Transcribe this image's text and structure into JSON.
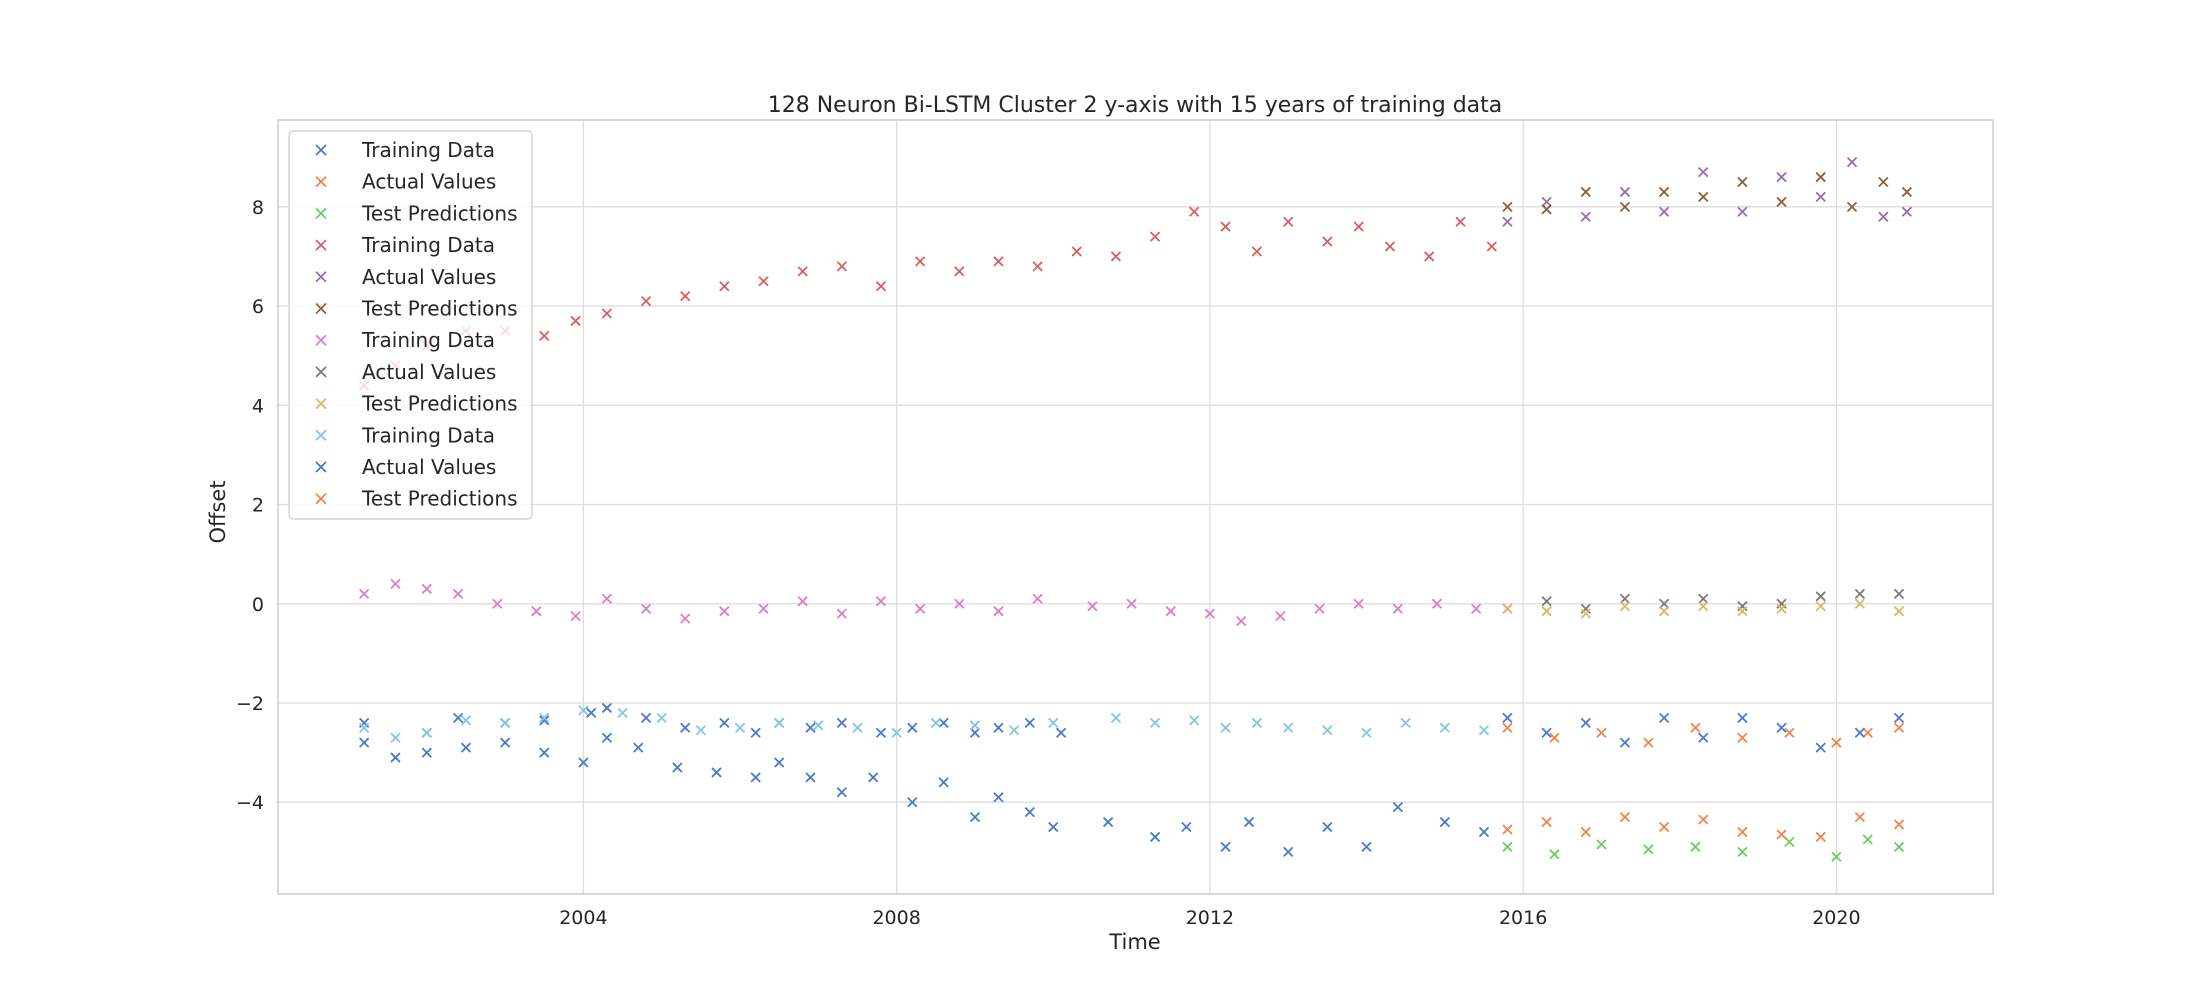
{
  "chart_data": {
    "type": "scatter",
    "title": "128 Neuron Bi-LSTM Cluster 2 y-axis with 15 years of training data",
    "xlabel": "Time",
    "ylabel": "Offset",
    "xlim": [
      2000.1,
      2022.0
    ],
    "ylim": [
      -5.85,
      9.75
    ],
    "x_ticks": [
      2004,
      2008,
      2012,
      2016,
      2020
    ],
    "x_tick_labels": [
      "2004",
      "2008",
      "2012",
      "2016",
      "2020"
    ],
    "y_ticks": [
      -4,
      -2,
      0,
      2,
      4,
      6,
      8
    ],
    "y_tick_labels": [
      "−4",
      "−2",
      "0",
      "2",
      "4",
      "6",
      "8"
    ],
    "grid": true,
    "legend_placement": "top-left",
    "marker": "x",
    "series": [
      {
        "name": "Training Data",
        "color": "#4878d0",
        "x": [
          2001.2,
          2002.0,
          2002.4,
          2003.0,
          2003.5,
          2004.1,
          2004.3,
          2004.8,
          2005.3,
          2005.8,
          2006.2,
          2006.5,
          2006.9,
          2007.3,
          2007.8,
          2008.2,
          2008.6,
          2009.0,
          2009.3,
          2009.7,
          2010.1
        ],
        "y": [
          -2.4,
          -2.6,
          -2.3,
          -2.4,
          -2.35,
          -2.2,
          -2.1,
          -2.3,
          -2.5,
          -2.4,
          -2.6,
          -2.4,
          -2.5,
          -2.4,
          -2.6,
          -2.5,
          -2.4,
          -2.6,
          -2.5,
          -2.4,
          -2.6
        ]
      },
      {
        "name": "Actual Values",
        "color": "#ee854a",
        "x": [
          2015.8,
          2016.4,
          2017.0,
          2017.6,
          2018.2,
          2018.8,
          2019.4,
          2020.0,
          2020.4,
          2020.8
        ],
        "y": [
          -2.5,
          -2.7,
          -2.6,
          -2.8,
          -2.5,
          -2.7,
          -2.6,
          -2.8,
          -2.6,
          -2.5
        ]
      },
      {
        "name": "Test Predictions",
        "color": "#6acc64",
        "x": [
          2015.8,
          2016.4,
          2017.0,
          2017.6,
          2018.2,
          2018.8,
          2019.4,
          2020.0,
          2020.4,
          2020.8
        ],
        "y": [
          -4.9,
          -5.05,
          -4.85,
          -4.95,
          -4.9,
          -5.0,
          -4.8,
          -5.1,
          -4.75,
          -4.9
        ]
      },
      {
        "name": "Training Data",
        "color": "#d65f5f",
        "x": [
          2001.2,
          2001.6,
          2002.0,
          2002.5,
          2003.0,
          2003.5,
          2003.9,
          2004.3,
          2004.8,
          2005.3,
          2005.8,
          2006.3,
          2006.8,
          2007.3,
          2007.8,
          2008.3,
          2008.8,
          2009.3,
          2009.8,
          2010.3,
          2010.8,
          2011.3,
          2011.8,
          2012.2,
          2012.6,
          2013.0,
          2013.5,
          2013.9,
          2014.3,
          2014.8,
          2015.2,
          2015.6
        ],
        "y": [
          4.4,
          4.8,
          5.2,
          5.5,
          5.5,
          5.4,
          5.7,
          5.85,
          6.1,
          6.2,
          6.4,
          6.5,
          6.7,
          6.8,
          6.4,
          6.9,
          6.7,
          6.9,
          6.8,
          7.1,
          7.0,
          7.4,
          7.9,
          7.6,
          7.1,
          7.7,
          7.3,
          7.6,
          7.2,
          7.0,
          7.7,
          7.2
        ]
      },
      {
        "name": "Actual Values",
        "color": "#956cb4",
        "x": [
          2015.8,
          2016.3,
          2016.8,
          2017.3,
          2017.8,
          2018.3,
          2018.8,
          2019.3,
          2019.8,
          2020.2,
          2020.6,
          2020.9
        ],
        "y": [
          7.7,
          8.1,
          7.8,
          8.3,
          7.9,
          8.7,
          7.9,
          8.6,
          8.2,
          8.9,
          7.8,
          7.9
        ]
      },
      {
        "name": "Test Predictions",
        "color": "#8c613c",
        "x": [
          2015.8,
          2016.3,
          2016.8,
          2017.3,
          2017.8,
          2018.3,
          2018.8,
          2019.3,
          2019.8,
          2020.2,
          2020.6,
          2020.9
        ],
        "y": [
          8.0,
          7.95,
          8.3,
          8.0,
          8.3,
          8.2,
          8.5,
          8.1,
          8.6,
          8.0,
          8.5,
          8.3
        ]
      },
      {
        "name": "Training Data",
        "color": "#dc7ec0",
        "x": [
          2001.2,
          2001.6,
          2002.0,
          2002.4,
          2002.9,
          2003.4,
          2003.9,
          2004.3,
          2004.8,
          2005.3,
          2005.8,
          2006.3,
          2006.8,
          2007.3,
          2007.8,
          2008.3,
          2008.8,
          2009.3,
          2009.8,
          2010.5,
          2011.0,
          2011.5,
          2012.0,
          2012.4,
          2012.9,
          2013.4,
          2013.9,
          2014.4,
          2014.9,
          2015.4
        ],
        "y": [
          0.2,
          0.4,
          0.3,
          0.2,
          0.0,
          -0.15,
          -0.25,
          0.1,
          -0.1,
          -0.3,
          -0.15,
          -0.1,
          0.05,
          -0.2,
          0.05,
          -0.1,
          0.0,
          -0.15,
          0.1,
          -0.05,
          0.0,
          -0.15,
          -0.2,
          -0.35,
          -0.25,
          -0.1,
          0.0,
          -0.1,
          0.0,
          -0.1
        ]
      },
      {
        "name": "Actual Values",
        "color": "#797979",
        "x": [
          2015.8,
          2016.3,
          2016.8,
          2017.3,
          2017.8,
          2018.3,
          2018.8,
          2019.3,
          2019.8,
          2020.3,
          2020.8
        ],
        "y": [
          -0.1,
          0.05,
          -0.1,
          0.1,
          0.0,
          0.1,
          -0.05,
          0.0,
          0.15,
          0.2,
          0.2
        ]
      },
      {
        "name": "Test Predictions",
        "color": "#d5bb67",
        "x": [
          2015.8,
          2016.3,
          2016.8,
          2017.3,
          2017.8,
          2018.3,
          2018.8,
          2019.3,
          2019.8,
          2020.3,
          2020.8
        ],
        "y": [
          -0.1,
          -0.15,
          -0.2,
          -0.05,
          -0.15,
          -0.05,
          -0.15,
          -0.1,
          -0.05,
          0.0,
          -0.15
        ]
      },
      {
        "name": "Training Data",
        "color": "#82c6e2",
        "x": [
          2001.2,
          2001.6,
          2002.0,
          2002.5,
          2003.0,
          2003.5,
          2004.0,
          2004.5,
          2005.0,
          2005.5,
          2006.0,
          2006.5,
          2007.0,
          2007.5,
          2008.0,
          2008.5,
          2009.0,
          2009.5,
          2010.0,
          2010.8,
          2011.3,
          2011.8,
          2012.2,
          2012.6,
          2013.0,
          2013.5,
          2014.0,
          2014.5,
          2015.0,
          2015.5
        ],
        "y": [
          -2.5,
          -2.7,
          -2.6,
          -2.35,
          -2.4,
          -2.3,
          -2.15,
          -2.2,
          -2.3,
          -2.55,
          -2.5,
          -2.4,
          -2.45,
          -2.5,
          -2.6,
          -2.4,
          -2.45,
          -2.55,
          -2.4,
          -2.3,
          -2.4,
          -2.35,
          -2.5,
          -2.4,
          -2.5,
          -2.55,
          -2.6,
          -2.4,
          -2.5,
          -2.55
        ]
      },
      {
        "name": "Actual Values",
        "color": "#4878d0",
        "x": [
          2001.2,
          2001.6,
          2002.0,
          2002.5,
          2003.0,
          2003.5,
          2004.0,
          2004.3,
          2004.7,
          2005.2,
          2005.7,
          2006.2,
          2006.5,
          2006.9,
          2007.3,
          2007.7,
          2008.2,
          2008.6,
          2009.0,
          2009.3,
          2009.7,
          2010.0,
          2010.7,
          2011.3,
          2011.7,
          2012.2,
          2012.5,
          2013.0,
          2013.5,
          2014.0,
          2014.4,
          2015.0,
          2015.5,
          2015.8,
          2016.3,
          2016.8,
          2017.3,
          2017.8,
          2018.3,
          2018.8,
          2019.3,
          2019.8,
          2020.3,
          2020.8
        ],
        "y": [
          -2.8,
          -3.1,
          -3.0,
          -2.9,
          -2.8,
          -3.0,
          -3.2,
          -2.7,
          -2.9,
          -3.3,
          -3.4,
          -3.5,
          -3.2,
          -3.5,
          -3.8,
          -3.5,
          -4.0,
          -3.6,
          -4.3,
          -3.9,
          -4.2,
          -4.5,
          -4.4,
          -4.7,
          -4.5,
          -4.9,
          -4.4,
          -5.0,
          -4.5,
          -4.9,
          -4.1,
          -4.4,
          -4.6,
          -2.3,
          -2.6,
          -2.4,
          -2.8,
          -2.3,
          -2.7,
          -2.3,
          -2.5,
          -2.9,
          -2.6,
          -2.3
        ]
      },
      {
        "name": "Test Predictions",
        "color": "#ee854a",
        "x": [
          2015.8,
          2016.3,
          2016.8,
          2017.3,
          2017.8,
          2018.3,
          2018.8,
          2019.3,
          2019.8,
          2020.3,
          2020.8
        ],
        "y": [
          -4.55,
          -4.4,
          -4.6,
          -4.3,
          -4.5,
          -4.35,
          -4.6,
          -4.65,
          -4.7,
          -4.3,
          -4.45
        ]
      }
    ]
  }
}
